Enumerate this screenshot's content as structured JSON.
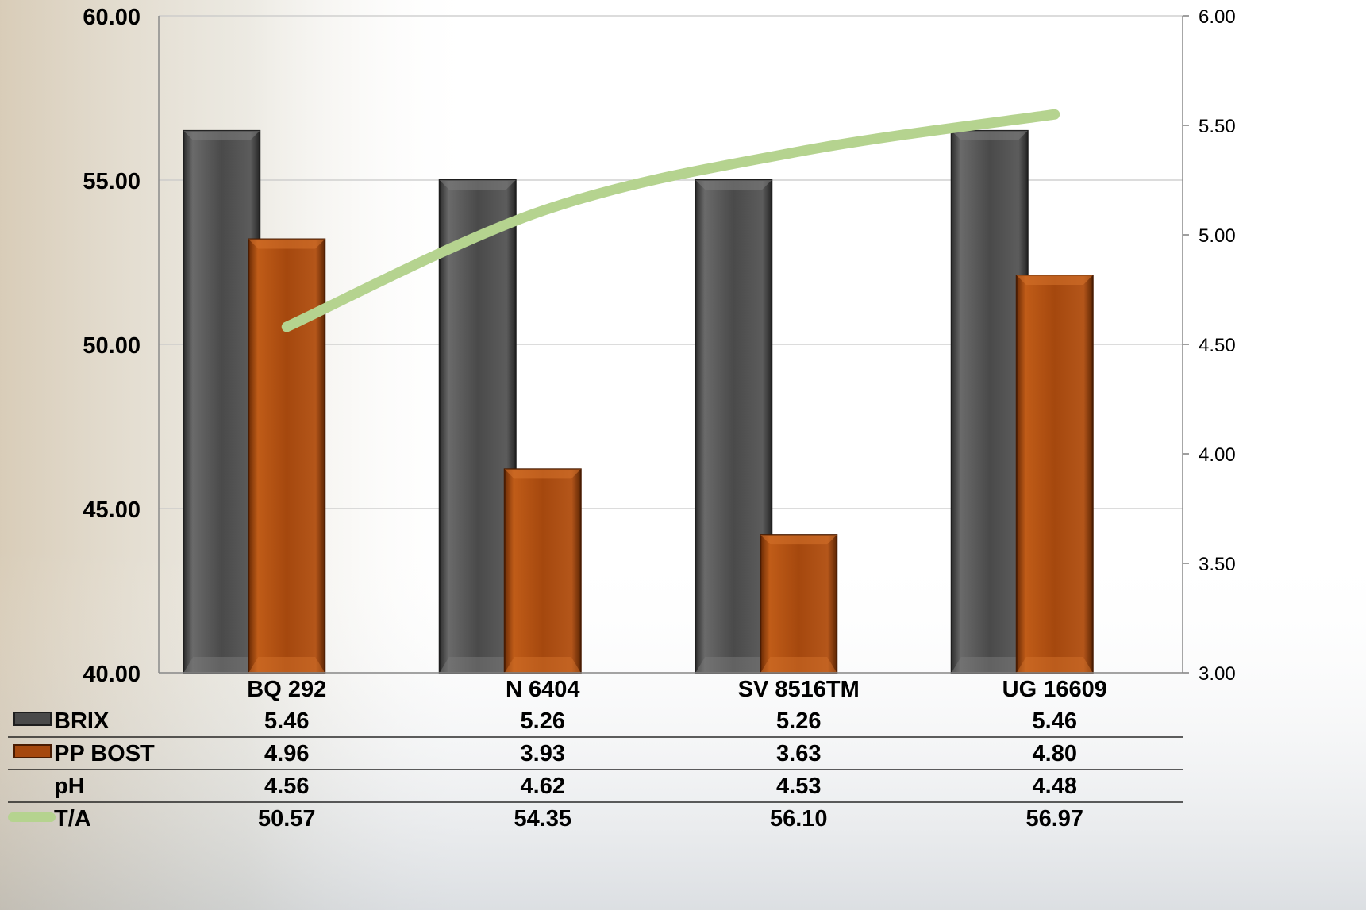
{
  "chart_data": {
    "type": "bar",
    "categories": [
      "BQ 292",
      "N 6404",
      "SV 8516TM",
      "UG 16609"
    ],
    "series": [
      {
        "name": "BRIX",
        "axis": "left",
        "mark": "bar",
        "color": "#4a4a4a",
        "values": [
          5.46,
          5.26,
          5.26,
          5.46
        ],
        "plotted_left_values": [
          56.5,
          55.0,
          55.0,
          56.5
        ]
      },
      {
        "name": "PP BOST",
        "axis": "left",
        "mark": "bar",
        "color": "#a5480e",
        "values": [
          4.96,
          3.93,
          3.63,
          4.8
        ],
        "plotted_left_values": [
          53.2,
          46.2,
          44.2,
          52.1
        ]
      },
      {
        "name": "pH",
        "axis": "none",
        "mark": "none",
        "values": [
          4.56,
          4.62,
          4.53,
          4.48
        ]
      },
      {
        "name": "T/A",
        "axis": "right",
        "mark": "line",
        "color": "#b5d38f",
        "values": [
          50.57,
          54.35,
          56.1,
          56.97
        ],
        "plotted_right_values": [
          4.58,
          5.11,
          5.38,
          5.55
        ]
      }
    ],
    "y_left": {
      "range": [
        40,
        60
      ],
      "ticks": [
        "40.00",
        "45.00",
        "50.00",
        "55.00",
        "60.00"
      ]
    },
    "y_right": {
      "range": [
        3,
        6
      ],
      "ticks": [
        "3.00",
        "3.50",
        "4.00",
        "4.50",
        "5.00",
        "5.50",
        "6.00"
      ]
    },
    "grid": true,
    "legend": "data table below chart",
    "table": {
      "rows": [
        {
          "label": "BRIX",
          "values": [
            "5.46",
            "5.26",
            "5.26",
            "5.46"
          ]
        },
        {
          "label": "PP BOST",
          "values": [
            "4.96",
            "3.93",
            "3.63",
            "4.80"
          ]
        },
        {
          "label": "pH",
          "values": [
            "4.56",
            "4.62",
            "4.53",
            "4.48"
          ]
        },
        {
          "label": "T/A",
          "values": [
            "50.57",
            "54.35",
            "56.10",
            "56.97"
          ]
        }
      ]
    }
  }
}
